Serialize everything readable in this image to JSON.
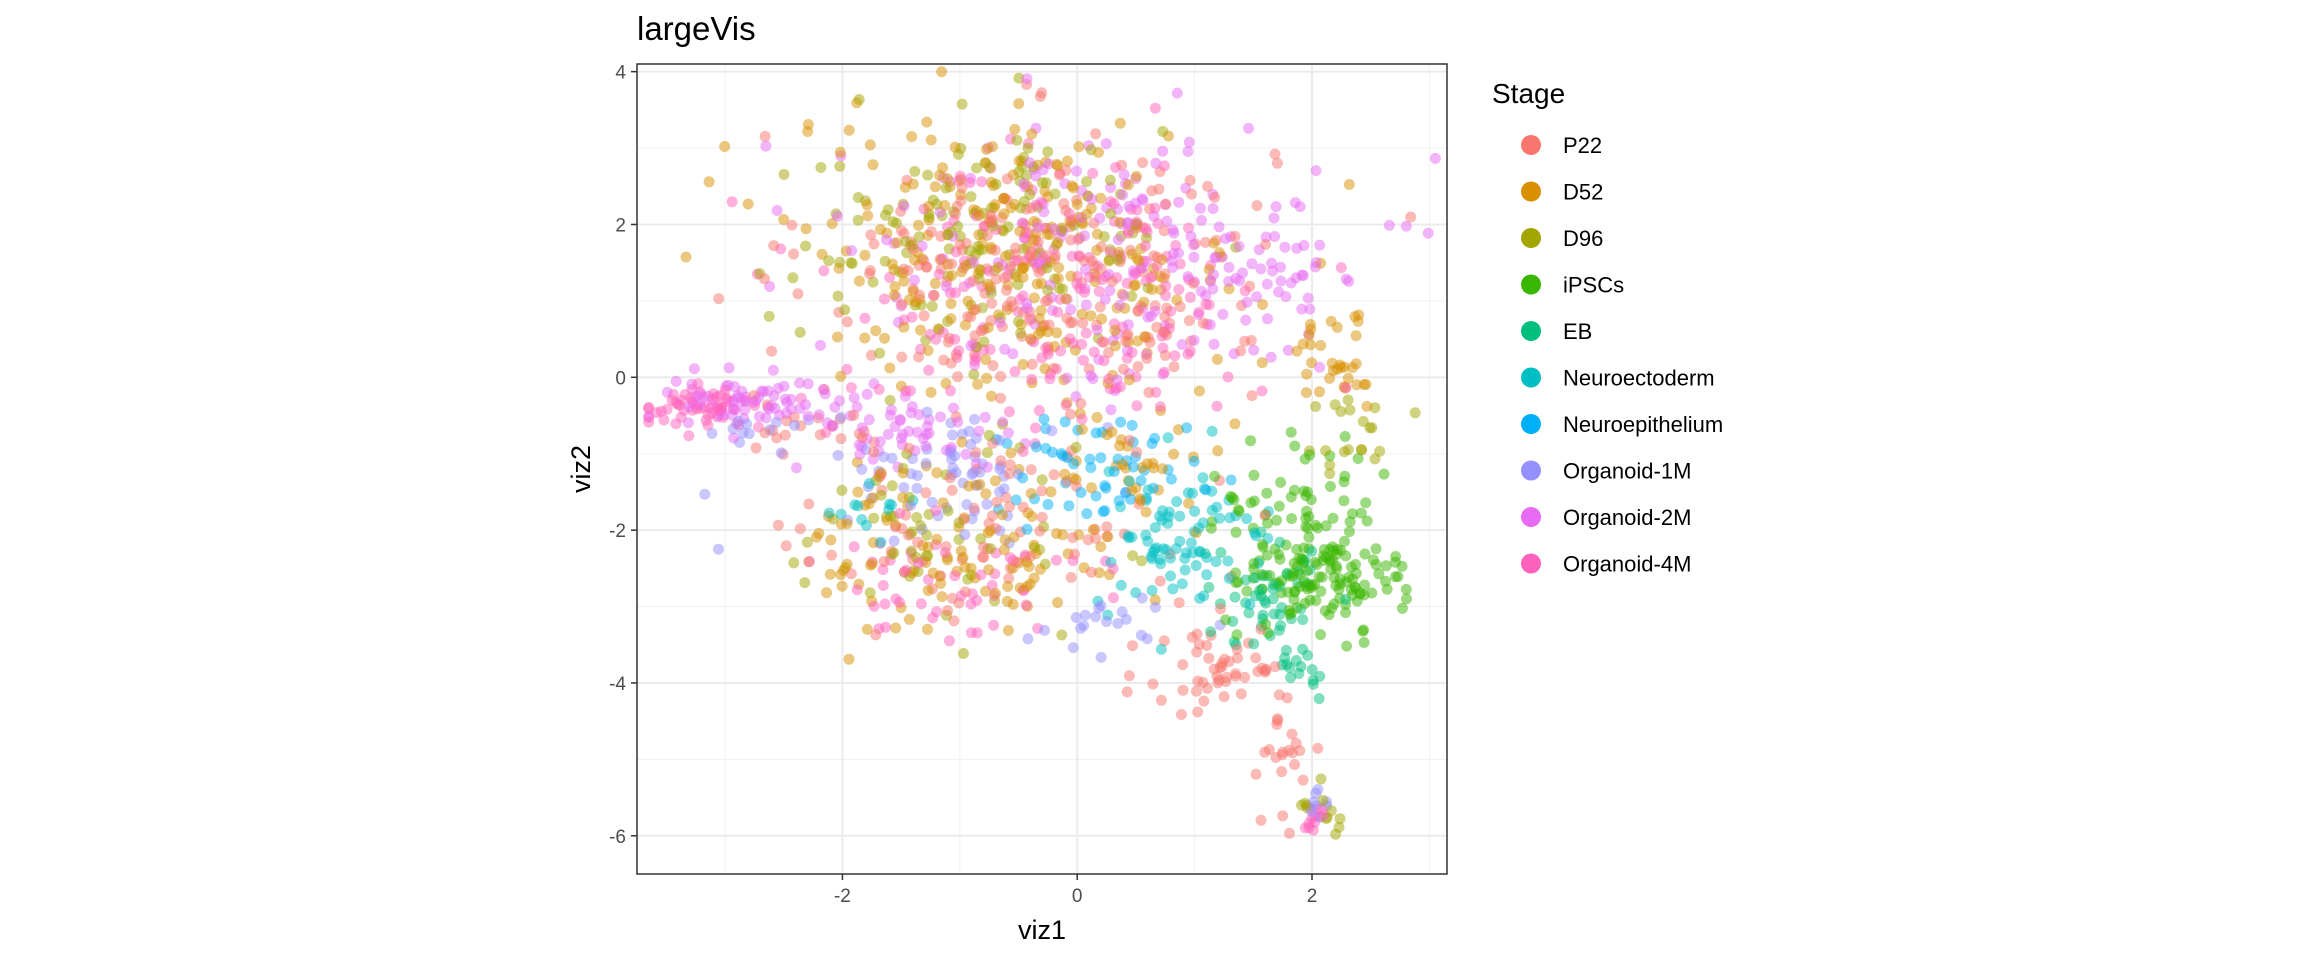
{
  "chart_data": {
    "type": "scatter",
    "title": "largeVis",
    "xlabel": "viz1",
    "ylabel": "viz2",
    "xlim": [
      -3.75,
      3.15
    ],
    "ylim": [
      -6.5,
      4.1
    ],
    "x_ticks": [
      -2,
      0,
      2
    ],
    "x_tick_labels": [
      "-2",
      "0",
      "2"
    ],
    "y_ticks": [
      -6,
      -4,
      -2,
      0,
      2,
      4
    ],
    "y_tick_labels": [
      "-6",
      "-4",
      "-2",
      "0",
      "2",
      "4"
    ],
    "grid": true,
    "point_alpha": 0.5,
    "legend": {
      "title": "Stage",
      "position": "right"
    },
    "series": [
      {
        "name": "P22",
        "color": "#F8766D",
        "clusters": [
          [
            -0.3,
            1.4,
            1.3,
            1.2,
            55
          ],
          [
            -0.5,
            -2.0,
            1.1,
            0.8,
            20
          ],
          [
            1.2,
            -3.8,
            0.4,
            0.5,
            12
          ],
          [
            1.7,
            -5.0,
            0.25,
            0.6,
            6
          ],
          [
            -2.2,
            -0.5,
            0.5,
            0.4,
            6
          ]
        ]
      },
      {
        "name": "D52",
        "color": "#D89000",
        "clusters": [
          [
            -0.5,
            1.6,
            1.3,
            1.2,
            60
          ],
          [
            -0.9,
            -2.2,
            0.9,
            0.8,
            28
          ],
          [
            2.2,
            0.2,
            0.3,
            0.4,
            8
          ],
          [
            0.5,
            -1.0,
            0.5,
            0.5,
            8
          ]
        ]
      },
      {
        "name": "D96",
        "color": "#A3A500",
        "clusters": [
          [
            -0.8,
            1.8,
            1.1,
            1.0,
            35
          ],
          [
            -1.2,
            -2.0,
            0.8,
            0.8,
            14
          ],
          [
            2.0,
            -5.7,
            0.15,
            0.25,
            3
          ],
          [
            2.3,
            -0.8,
            0.3,
            0.5,
            5
          ]
        ]
      },
      {
        "name": "iPSCs",
        "color": "#39B600",
        "clusters": [
          [
            2.1,
            -2.6,
            0.45,
            0.45,
            35
          ],
          [
            1.9,
            -1.5,
            0.5,
            0.4,
            12
          ]
        ]
      },
      {
        "name": "EB",
        "color": "#00BF7D",
        "clusters": [
          [
            1.6,
            -2.9,
            0.35,
            0.5,
            12
          ],
          [
            1.9,
            -3.8,
            0.15,
            0.3,
            4
          ]
        ]
      },
      {
        "name": "Neuroectoderm",
        "color": "#00BFC4",
        "clusters": [
          [
            0.9,
            -2.2,
            0.5,
            0.6,
            20
          ],
          [
            -1.8,
            -1.7,
            0.3,
            0.2,
            3
          ]
        ]
      },
      {
        "name": "Neuroepithelium",
        "color": "#00B0F6",
        "clusters": [
          [
            0.2,
            -1.2,
            0.6,
            0.5,
            14
          ]
        ]
      },
      {
        "name": "Organoid-1M",
        "color": "#9590FF",
        "clusters": [
          [
            -1.0,
            -1.2,
            0.7,
            0.5,
            16
          ],
          [
            0.3,
            -3.3,
            0.4,
            0.2,
            5
          ],
          [
            -2.8,
            -0.7,
            0.3,
            0.2,
            3
          ],
          [
            2.0,
            -5.6,
            0.1,
            0.2,
            2
          ]
        ]
      },
      {
        "name": "Organoid-2M",
        "color": "#E76BF3",
        "clusters": [
          [
            0.2,
            1.6,
            1.4,
            1.2,
            45
          ],
          [
            -2.8,
            -0.3,
            0.5,
            0.3,
            16
          ],
          [
            -1.5,
            -0.7,
            0.6,
            0.4,
            14
          ],
          [
            1.7,
            1.0,
            0.5,
            0.8,
            10
          ]
        ]
      },
      {
        "name": "Organoid-4M",
        "color": "#FF62BC",
        "clusters": [
          [
            -0.3,
            1.0,
            1.3,
            1.3,
            45
          ],
          [
            -3.2,
            -0.4,
            0.3,
            0.15,
            14
          ],
          [
            -1.1,
            -2.6,
            0.8,
            0.6,
            14
          ],
          [
            2.0,
            -5.8,
            0.1,
            0.15,
            3
          ]
        ]
      }
    ]
  }
}
